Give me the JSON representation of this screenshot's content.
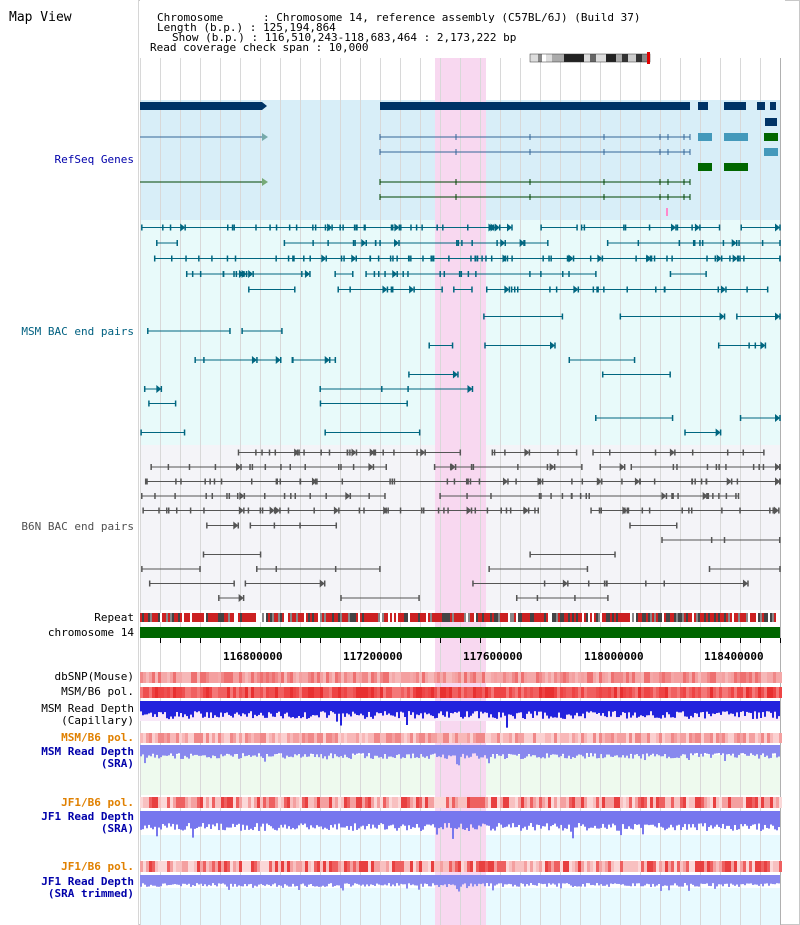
{
  "panel_title": "Map View",
  "header": {
    "chromosome": "Chromosome      : Chromosome 14, reference assembly (C57BL/6J) (Build 37)",
    "length": "Length (b.p.) : 125,194,864",
    "show": "Show (b.p.) : 116,510,243-118,683,464 : 2,173,222 bp",
    "coverage": "Read coverage check span : 10,000"
  },
  "track_labels": {
    "refseq": "RefSeq Genes",
    "msm_bac": "MSM BAC end pairs",
    "b6n_bac": "B6N BAC end pairs",
    "repeat": "Repeat",
    "chromosome": "chromosome 14",
    "dbsnp": "dbSNP(Mouse)",
    "msm_b6_pol": "MSM/B6 pol.",
    "msm_depth_cap_1": "MSM Read Depth",
    "msm_depth_cap_2": "(Capillary)",
    "msm_b6_pol_sra": "MSM/B6 pol.",
    "msm_depth_sra_1": "MSM Read Depth",
    "msm_depth_sra_2": "(SRA)",
    "jf1_b6_pol": "JF1/B6 pol.",
    "jf1_depth_sra_1": "JF1 Read Depth",
    "jf1_depth_sra_2": "(SRA)",
    "jf1_b6_pol_trim": "JF1/B6 pol.",
    "jf1_depth_trim_1": "JF1 Read Depth",
    "jf1_depth_trim_2": "(SRA trimmed)"
  },
  "axis_ticks": [
    "116800000",
    "117200000",
    "117600000",
    "118000000",
    "118400000"
  ],
  "colors": {
    "refseq_label": "#0000aa",
    "msm_label": "#006080",
    "b6n_label": "#505050",
    "pol_label": "#e08000",
    "depth_label": "#0000aa",
    "highlight": "#f8d8f0"
  }
}
